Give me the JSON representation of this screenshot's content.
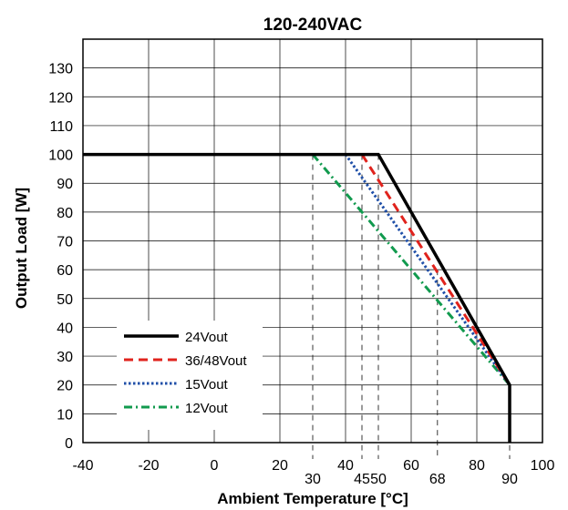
{
  "chart_data": {
    "type": "line",
    "title": "120-240VAC",
    "xlabel": "Ambient Temperature [°C]",
    "ylabel": "Output Load [W]",
    "xlim": [
      -40,
      100
    ],
    "ylim": [
      0,
      140
    ],
    "x_ticks": [
      -40,
      -20,
      0,
      20,
      40,
      60,
      80,
      100
    ],
    "y_ticks": [
      0,
      10,
      20,
      30,
      40,
      50,
      60,
      70,
      80,
      90,
      100,
      110,
      120,
      130
    ],
    "grid": true,
    "series": [
      {
        "name": "24Vout",
        "color": "#000000",
        "style": "solid",
        "x": [
          -40,
          50,
          90,
          90
        ],
        "y": [
          100,
          100,
          20,
          0
        ]
      },
      {
        "name": "36/48Vout",
        "color": "#e0231d",
        "style": "dashed",
        "x": [
          45,
          90
        ],
        "y": [
          100,
          20
        ]
      },
      {
        "name": "15Vout",
        "color": "#1f4fa8",
        "style": "dotted",
        "x": [
          40,
          90
        ],
        "y": [
          100,
          20
        ]
      },
      {
        "name": "12Vout",
        "color": "#119a4e",
        "style": "dashdot",
        "x": [
          30,
          90
        ],
        "y": [
          100,
          20
        ]
      }
    ],
    "reference_lines": [
      {
        "x": 30,
        "label": "30",
        "y_top": 100
      },
      {
        "x": 45,
        "label": "45",
        "y_top": 100
      },
      {
        "x": 50,
        "label": "50",
        "y_top": 100
      },
      {
        "x": 68,
        "label": "68",
        "y_top": 60
      },
      {
        "x": 90,
        "label": "90",
        "y_top": 20
      }
    ],
    "legend_position": "bottom-left"
  }
}
